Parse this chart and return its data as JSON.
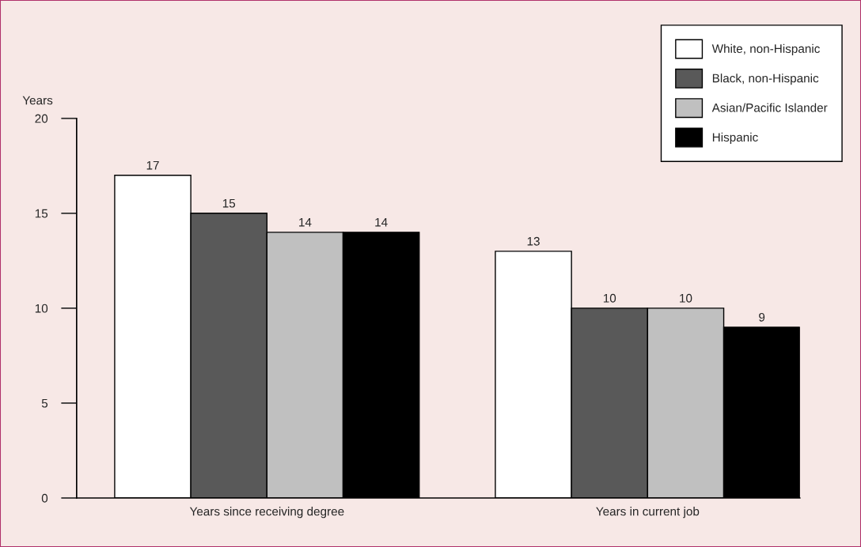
{
  "chart_data": {
    "type": "bar",
    "ylabel": "Years",
    "categories": [
      "Years since receiving degree",
      "Years in current job"
    ],
    "series": [
      {
        "name": "White, non-Hispanic",
        "color": "#ffffff",
        "values": [
          17,
          13
        ]
      },
      {
        "name": "Black, non-Hispanic",
        "color": "#595959",
        "values": [
          15,
          10
        ]
      },
      {
        "name": "Asian/Pacific Islander",
        "color": "#c0c0c0",
        "values": [
          14,
          10
        ]
      },
      {
        "name": "Hispanic",
        "color": "#000000",
        "values": [
          14,
          9
        ]
      }
    ],
    "ylim": [
      0,
      20
    ],
    "yticks": [
      0,
      5,
      10,
      15,
      20
    ],
    "grid": false,
    "legend": "top right",
    "data_labels": true
  }
}
